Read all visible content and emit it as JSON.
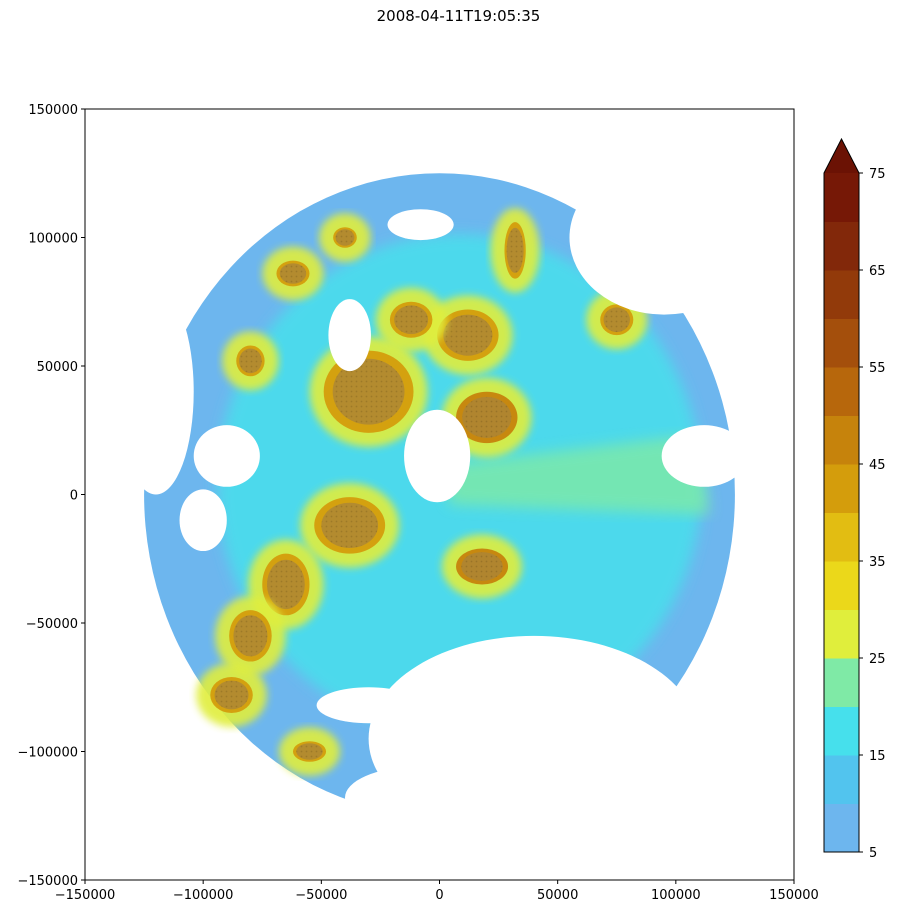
{
  "chart_data": {
    "type": "heatmap",
    "title": "2008-04-11T19:05:35",
    "xlabel": "",
    "ylabel": "",
    "xlim": [
      -150000,
      150000
    ],
    "ylim": [
      -150000,
      150000
    ],
    "x_ticks": [
      -150000,
      -100000,
      -50000,
      0,
      50000,
      100000,
      150000
    ],
    "x_tick_labels": [
      "−150000",
      "−100000",
      "−50000",
      "0",
      "50000",
      "100000",
      "150000"
    ],
    "y_ticks": [
      150000,
      100000,
      50000,
      0,
      -50000,
      -100000,
      -150000
    ],
    "y_tick_labels": [
      "150000",
      "100000",
      "50000",
      "0",
      "−50000",
      "−100000",
      "−150000"
    ],
    "grid": false,
    "field_center": [
      0,
      0
    ],
    "field_radius": 125000,
    "cells": [
      {
        "x": -30000,
        "y": 40000,
        "w": 38000,
        "h": 32000,
        "value": 42
      },
      {
        "x": 12000,
        "y": 62000,
        "w": 26000,
        "h": 20000,
        "value": 44
      },
      {
        "x": 20000,
        "y": 30000,
        "w": 26000,
        "h": 20000,
        "value": 46
      },
      {
        "x": -38000,
        "y": -12000,
        "w": 30000,
        "h": 22000,
        "value": 44
      },
      {
        "x": -65000,
        "y": -35000,
        "w": 20000,
        "h": 24000,
        "value": 43
      },
      {
        "x": -80000,
        "y": -55000,
        "w": 18000,
        "h": 20000,
        "value": 44
      },
      {
        "x": -88000,
        "y": -78000,
        "w": 18000,
        "h": 14000,
        "value": 42
      },
      {
        "x": 18000,
        "y": -28000,
        "w": 22000,
        "h": 14000,
        "value": 46
      },
      {
        "x": 75000,
        "y": 68000,
        "w": 14000,
        "h": 12000,
        "value": 44
      },
      {
        "x": 32000,
        "y": 95000,
        "w": 9000,
        "h": 22000,
        "value": 40
      },
      {
        "x": -62000,
        "y": 86000,
        "w": 14000,
        "h": 10000,
        "value": 44
      },
      {
        "x": -80000,
        "y": 52000,
        "w": 12000,
        "h": 12000,
        "value": 44
      },
      {
        "x": -55000,
        "y": -100000,
        "w": 14000,
        "h": 8000,
        "value": 44
      },
      {
        "x": -40000,
        "y": 100000,
        "w": 10000,
        "h": 8000,
        "value": 42
      },
      {
        "x": -12000,
        "y": 68000,
        "w": 18000,
        "h": 14000,
        "value": 42
      }
    ],
    "colorbar": {
      "levels": [
        5,
        10,
        15,
        20,
        25,
        30,
        35,
        40,
        45,
        50,
        55,
        60,
        65,
        70,
        75
      ],
      "tick_values": [
        5,
        15,
        25,
        35,
        45,
        55,
        65,
        75
      ],
      "tick_labels": [
        "5",
        "15",
        "25",
        "35",
        "45",
        "55",
        "65",
        "75"
      ],
      "colors": [
        "#6db6ee",
        "#52c4ee",
        "#46e0ec",
        "#7feaa6",
        "#e0ee3c",
        "#ebd81a",
        "#e2bd12",
        "#d49d0c",
        "#c6830c",
        "#b7670c",
        "#a44f0c",
        "#923a0a",
        "#82280a",
        "#761806"
      ],
      "extend": "max",
      "extend_color": "#6b1204"
    }
  }
}
